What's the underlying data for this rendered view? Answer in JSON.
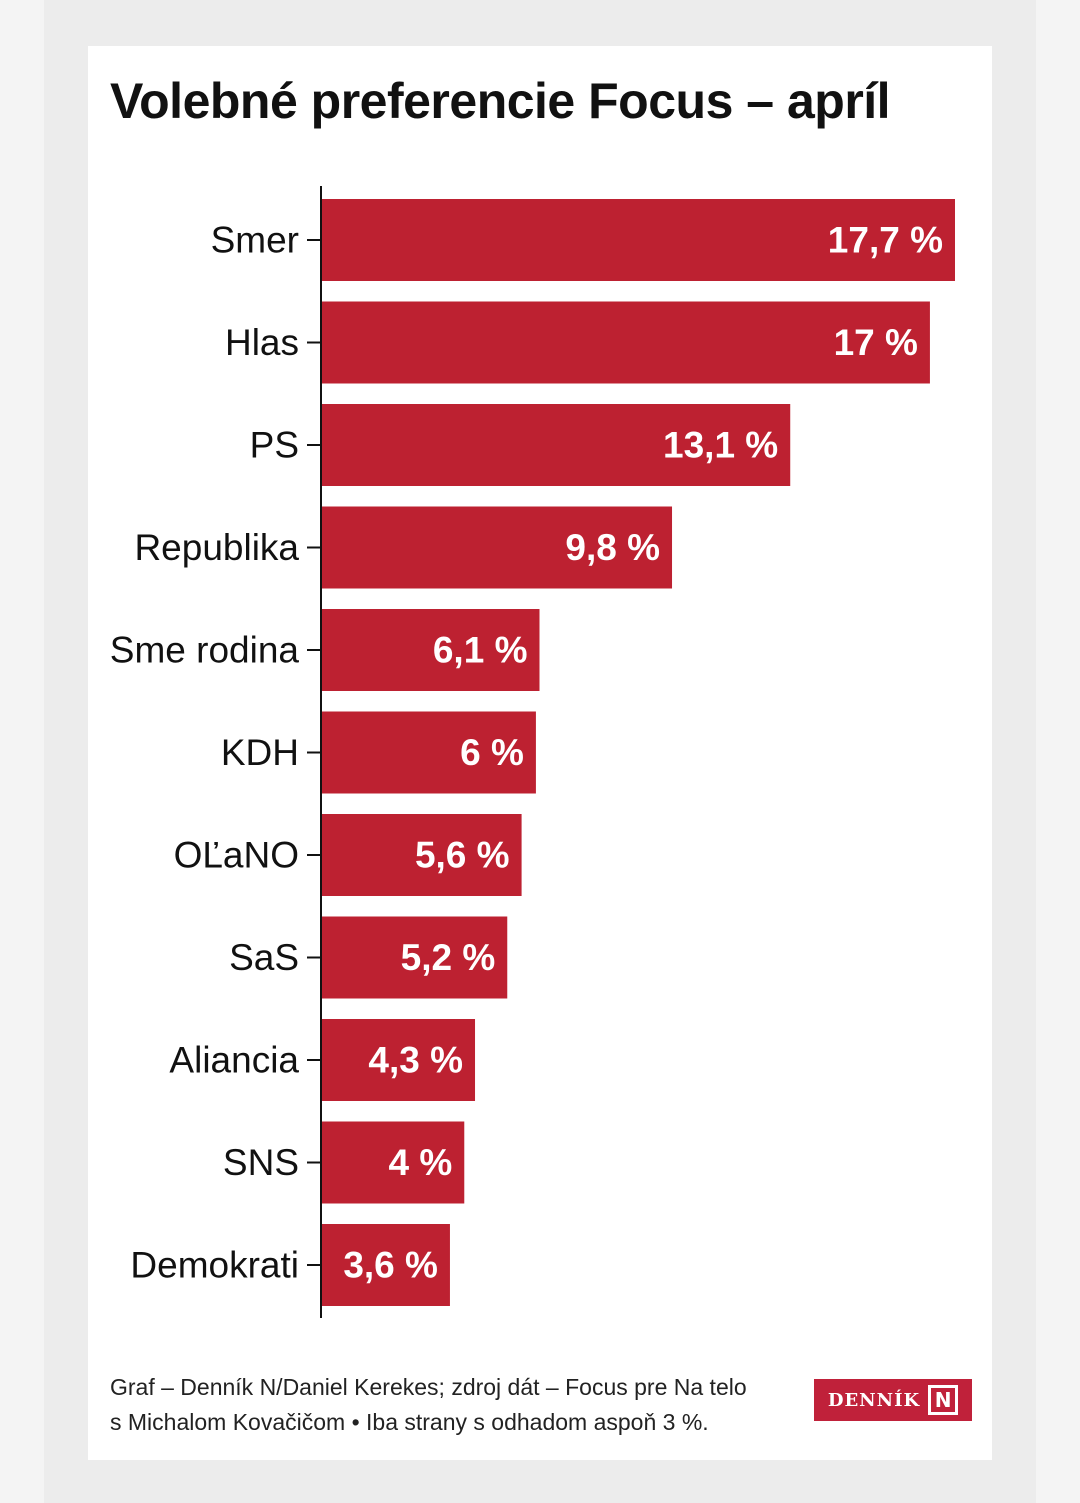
{
  "chart_data": {
    "type": "bar",
    "orientation": "horizontal",
    "title": "Volebné preferencie Focus – apríl",
    "categories": [
      "Smer",
      "Hlas",
      "PS",
      "Republika",
      "Sme rodina",
      "KDH",
      "OĽaNO",
      "SaS",
      "Aliancia",
      "SNS",
      "Demokrati"
    ],
    "values": [
      17.7,
      17,
      13.1,
      9.8,
      6.1,
      6,
      5.6,
      5.2,
      4.3,
      4,
      3.6
    ],
    "value_labels": [
      "17,7 %",
      "17 %",
      "13,1 %",
      "9,8 %",
      "6,1 %",
      "6 %",
      "5,6 %",
      "5,2 %",
      "4,3 %",
      "4 %",
      "3,6 %"
    ],
    "xlim": [
      0,
      17.7
    ],
    "xlabel": "",
    "ylabel": "",
    "grid": false,
    "bar_color": "#bd2131"
  },
  "footer": {
    "line1": "Graf – Denník N/Daniel Kerekes; zdroj dát – Focus pre Na telo",
    "line2": "s Michalom Kovačičom • Iba strany s odhadom aspoň 3 %."
  },
  "logo": {
    "text": "DENNÍK",
    "mark": "N"
  }
}
